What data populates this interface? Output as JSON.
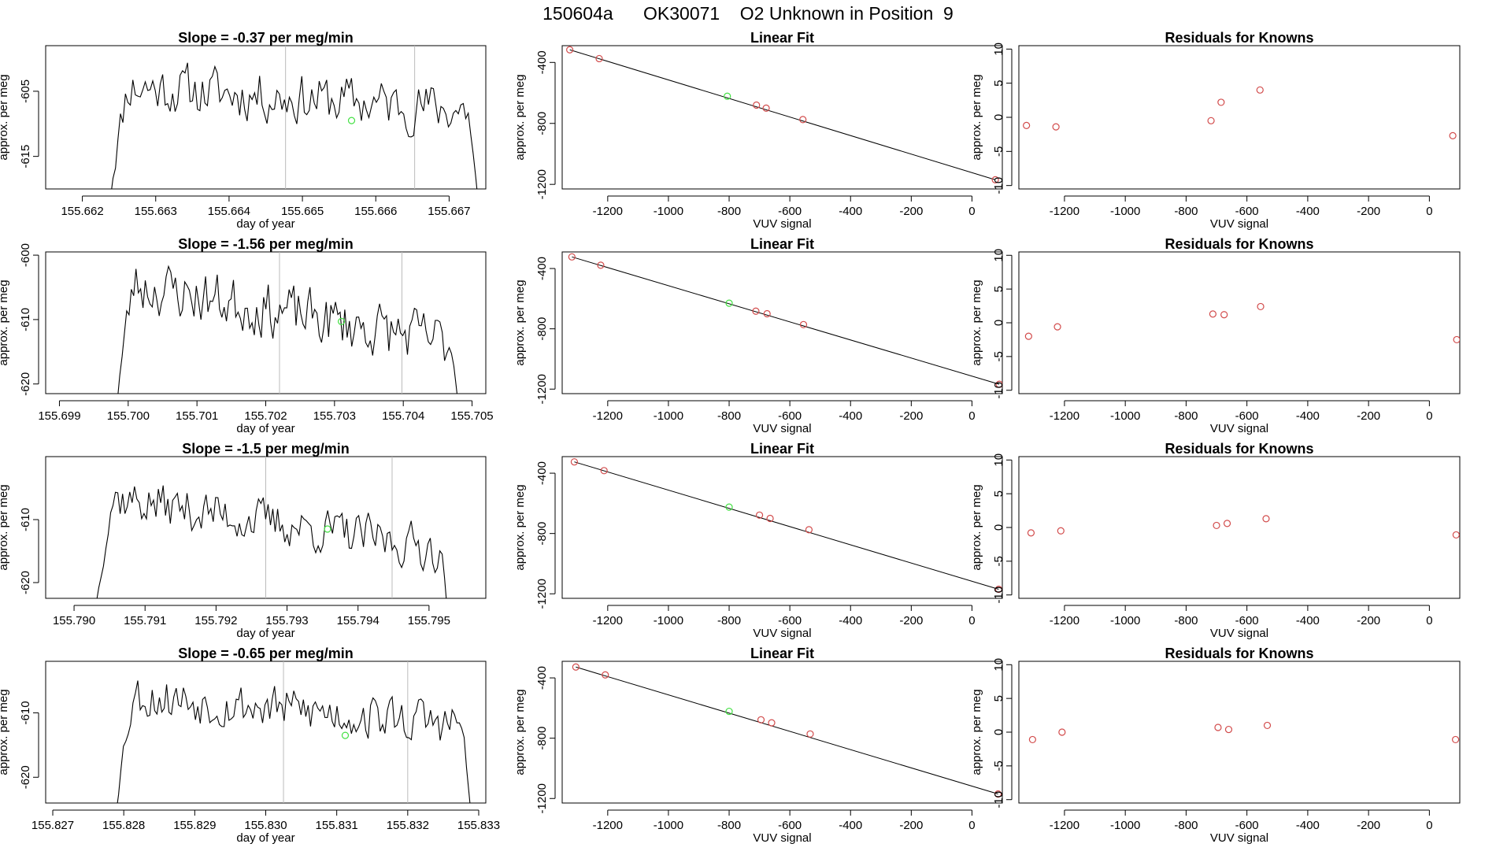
{
  "page": {
    "title_date": "150604a",
    "title_tank": "OK30071",
    "title_desc": "O2 Unknown in Position  9",
    "colors": {
      "known": "#d24b4b",
      "unknown": "#44e044",
      "line": "#000000",
      "vline": "#bbbbbb"
    }
  },
  "chart_data": [
    {
      "type": "line",
      "title": "Slope =  -0.37  per meg/min",
      "xlabel": "day of year",
      "ylabel": "approx. per meg",
      "xlim": [
        155.6615,
        155.6675
      ],
      "ylim": [
        -620,
        -598
      ],
      "xticks": [
        "155.662",
        "155.663",
        "155.664",
        "155.665",
        "155.666",
        "155.667"
      ],
      "xtick_values": [
        155.662,
        155.663,
        155.664,
        155.665,
        155.666,
        155.667
      ],
      "yticks": [
        "-605",
        "-615"
      ],
      "ytick_values": [
        -605,
        -615
      ],
      "x_start": 155.66235,
      "x_end": 155.66743,
      "vlines": [
        155.66477,
        155.66653
      ],
      "unknown_point": [
        155.66567,
        -609.5
      ],
      "seed": 11,
      "base": -604,
      "drift": -4,
      "noise": 2.2
    },
    {
      "type": "scatter",
      "title": "Linear Fit",
      "xlabel": "VUV signal",
      "ylabel": "approx. per meg",
      "xlim": [
        -1350,
        100
      ],
      "ylim": [
        -1230,
        -290
      ],
      "xticks": [
        "-1200",
        "-1000",
        "-800",
        "-600",
        "-400",
        "-200",
        "0"
      ],
      "xtick_values": [
        -1200,
        -1000,
        -800,
        -600,
        -400,
        -200,
        0
      ],
      "yticks": [
        "-400",
        "-800",
        "-1200"
      ],
      "ytick_values": [
        -400,
        -800,
        -1200
      ],
      "known_points": [
        [
          -1325,
          -317
        ],
        [
          -1228,
          -375
        ],
        [
          -710,
          -680
        ],
        [
          -678,
          -700
        ],
        [
          -557,
          -775
        ],
        [
          77,
          -1170
        ]
      ],
      "unknown_points": [
        [
          -806,
          -622
        ]
      ],
      "fit_line": [
        [
          -1325,
          -317
        ],
        [
          77,
          -1170
        ]
      ]
    },
    {
      "type": "scatter",
      "title": "Residuals for Knowns",
      "xlabel": "VUV signal",
      "ylabel": "approx. per meg",
      "xlim": [
        -1350,
        100
      ],
      "ylim": [
        -10.5,
        10.5
      ],
      "xticks": [
        "-1200",
        "-1000",
        "-800",
        "-600",
        "-400",
        "-200",
        "0"
      ],
      "xtick_values": [
        -1200,
        -1000,
        -800,
        -600,
        -400,
        -200,
        0
      ],
      "yticks": [
        "-10",
        "-5",
        "0",
        "5",
        "10"
      ],
      "ytick_values": [
        -10,
        -5,
        0,
        5,
        10
      ],
      "known_points": [
        [
          -1325,
          -1.2
        ],
        [
          -1228,
          -1.4
        ],
        [
          -718,
          -0.5
        ],
        [
          -685,
          2.2
        ],
        [
          -557,
          4.0
        ],
        [
          77,
          -2.7
        ]
      ]
    },
    {
      "type": "line",
      "title": "Slope =  -1.56  per meg/min",
      "xlabel": "day of year",
      "ylabel": "approx. per meg",
      "xlim": [
        155.6988,
        155.7052
      ],
      "ylim": [
        -621.5,
        -599.5
      ],
      "xticks": [
        "155.699",
        "155.700",
        "155.701",
        "155.702",
        "155.703",
        "155.704",
        "155.705"
      ],
      "xtick_values": [
        155.699,
        155.7,
        155.701,
        155.702,
        155.703,
        155.704,
        155.705
      ],
      "yticks": [
        "-600",
        "-610",
        "-620"
      ],
      "ytick_values": [
        -600,
        -610,
        -620
      ],
      "x_start": 155.69981,
      "x_end": 155.70487,
      "vlines": [
        155.7022,
        155.70398
      ],
      "unknown_point": [
        155.7031,
        -610.3
      ],
      "seed": 23,
      "base": -604,
      "drift": -10,
      "noise": 2.4
    },
    {
      "type": "scatter",
      "title": "Linear Fit",
      "xlabel": "VUV signal",
      "ylabel": "approx. per meg",
      "xlim": [
        -1350,
        100
      ],
      "ylim": [
        -1230,
        -290
      ],
      "xticks": [
        "-1200",
        "-1000",
        "-800",
        "-600",
        "-400",
        "-200",
        "0"
      ],
      "xtick_values": [
        -1200,
        -1000,
        -800,
        -600,
        -400,
        -200,
        0
      ],
      "yticks": [
        "-400",
        "-800",
        "-1200"
      ],
      "ytick_values": [
        -400,
        -800,
        -1200
      ],
      "known_points": [
        [
          -1318,
          -323
        ],
        [
          -1223,
          -378
        ],
        [
          -712,
          -683
        ],
        [
          -675,
          -700
        ],
        [
          -555,
          -772
        ],
        [
          90,
          -1168
        ]
      ],
      "unknown_points": [
        [
          -800,
          -630
        ]
      ],
      "fit_line": [
        [
          -1318,
          -323
        ],
        [
          90,
          -1168
        ]
      ]
    },
    {
      "type": "scatter",
      "title": "Residuals for Knowns",
      "xlabel": "VUV signal",
      "ylabel": "approx. per meg",
      "xlim": [
        -1350,
        100
      ],
      "ylim": [
        -10.5,
        10.5
      ],
      "xticks": [
        "-1200",
        "-1000",
        "-800",
        "-600",
        "-400",
        "-200",
        "0"
      ],
      "xtick_values": [
        -1200,
        -1000,
        -800,
        -600,
        -400,
        -200,
        0
      ],
      "yticks": [
        "-10",
        "-5",
        "0",
        "5",
        "10"
      ],
      "ytick_values": [
        -10,
        -5,
        0,
        5,
        10
      ],
      "known_points": [
        [
          -1318,
          -2.0
        ],
        [
          -1223,
          -0.6
        ],
        [
          -712,
          1.3
        ],
        [
          -675,
          1.2
        ],
        [
          -555,
          2.4
        ],
        [
          90,
          -2.5
        ]
      ]
    },
    {
      "type": "line",
      "title": "Slope =  -1.5  per meg/min",
      "xlabel": "day of year",
      "ylabel": "approx. per meg",
      "xlim": [
        155.7896,
        155.7958
      ],
      "ylim": [
        -622.5,
        -600
      ],
      "xticks": [
        "155.790",
        "155.791",
        "155.792",
        "155.793",
        "155.794",
        "155.795"
      ],
      "xtick_values": [
        155.79,
        155.791,
        155.792,
        155.793,
        155.794,
        155.795
      ],
      "yticks": [
        "-610",
        "-620"
      ],
      "ytick_values": [
        -610,
        -620
      ],
      "x_start": 155.79028,
      "x_end": 155.79532,
      "vlines": [
        155.7927,
        155.79448
      ],
      "unknown_point": [
        155.79357,
        -611.5
      ],
      "seed": 37,
      "base": -606,
      "drift": -9,
      "noise": 2.0
    },
    {
      "type": "scatter",
      "title": "Linear Fit",
      "xlabel": "VUV signal",
      "ylabel": "approx. per meg",
      "xlim": [
        -1350,
        100
      ],
      "ylim": [
        -1230,
        -290
      ],
      "xticks": [
        "-1200",
        "-1000",
        "-800",
        "-600",
        "-400",
        "-200",
        "0"
      ],
      "xtick_values": [
        -1200,
        -1000,
        -800,
        -600,
        -400,
        -200,
        0
      ],
      "yticks": [
        "-400",
        "-800",
        "-1200"
      ],
      "ytick_values": [
        -400,
        -800,
        -1200
      ],
      "known_points": [
        [
          -1310,
          -325
        ],
        [
          -1212,
          -383
        ],
        [
          -700,
          -678
        ],
        [
          -665,
          -700
        ],
        [
          -537,
          -775
        ],
        [
          88,
          -1170
        ]
      ],
      "unknown_points": [
        [
          -800,
          -625
        ]
      ],
      "fit_line": [
        [
          -1310,
          -325
        ],
        [
          88,
          -1170
        ]
      ]
    },
    {
      "type": "scatter",
      "title": "Residuals for Knowns",
      "xlabel": "VUV signal",
      "ylabel": "approx. per meg",
      "xlim": [
        -1350,
        100
      ],
      "ylim": [
        -10.5,
        10.5
      ],
      "xticks": [
        "-1200",
        "-1000",
        "-800",
        "-600",
        "-400",
        "-200",
        "0"
      ],
      "xtick_values": [
        -1200,
        -1000,
        -800,
        -600,
        -400,
        -200,
        0
      ],
      "yticks": [
        "-10",
        "-5",
        "0",
        "5",
        "10"
      ],
      "ytick_values": [
        -10,
        -5,
        0,
        5,
        10
      ],
      "known_points": [
        [
          -1310,
          -0.8
        ],
        [
          -1212,
          -0.5
        ],
        [
          -700,
          0.3
        ],
        [
          -665,
          0.6
        ],
        [
          -537,
          1.3
        ],
        [
          88,
          -1.1
        ]
      ]
    },
    {
      "type": "line",
      "title": "Slope =  -0.65  per meg/min",
      "xlabel": "day of year",
      "ylabel": "approx. per meg",
      "xlim": [
        155.8269,
        155.8331
      ],
      "ylim": [
        -624,
        -602
      ],
      "xticks": [
        "155.827",
        "155.828",
        "155.829",
        "155.830",
        "155.831",
        "155.832",
        "155.833"
      ],
      "xtick_values": [
        155.827,
        155.828,
        155.829,
        155.83,
        155.831,
        155.832,
        155.833
      ],
      "yticks": [
        "-610",
        "-620"
      ],
      "ytick_values": [
        -610,
        -620
      ],
      "x_start": 155.82786,
      "x_end": 155.83293,
      "vlines": [
        155.83025,
        155.832
      ],
      "unknown_point": [
        155.83112,
        -613.5
      ],
      "seed": 53,
      "base": -607,
      "drift": -5,
      "noise": 2.0
    },
    {
      "type": "scatter",
      "title": "Linear Fit",
      "xlabel": "VUV signal",
      "ylabel": "approx. per meg",
      "xlim": [
        -1350,
        100
      ],
      "ylim": [
        -1230,
        -290
      ],
      "xticks": [
        "-1200",
        "-1000",
        "-800",
        "-600",
        "-400",
        "-200",
        "0"
      ],
      "xtick_values": [
        -1200,
        -1000,
        -800,
        -600,
        -400,
        -200,
        0
      ],
      "yticks": [
        "-400",
        "-800",
        "-1200"
      ],
      "ytick_values": [
        -400,
        -800,
        -1200
      ],
      "known_points": [
        [
          -1305,
          -328
        ],
        [
          -1208,
          -380
        ],
        [
          -695,
          -678
        ],
        [
          -660,
          -698
        ],
        [
          -533,
          -772
        ],
        [
          86,
          -1170
        ]
      ],
      "unknown_points": [
        [
          -800,
          -622
        ]
      ],
      "fit_line": [
        [
          -1305,
          -328
        ],
        [
          86,
          -1170
        ]
      ]
    },
    {
      "type": "scatter",
      "title": "Residuals for Knowns",
      "xlabel": "VUV signal",
      "ylabel": "approx. per meg",
      "xlim": [
        -1350,
        100
      ],
      "ylim": [
        -10.5,
        10.5
      ],
      "xticks": [
        "-1200",
        "-1000",
        "-800",
        "-600",
        "-400",
        "-200",
        "0"
      ],
      "xtick_values": [
        -1200,
        -1000,
        -800,
        -600,
        -400,
        -200,
        0
      ],
      "yticks": [
        "-10",
        "-5",
        "0",
        "5",
        "10"
      ],
      "ytick_values": [
        -10,
        -5,
        0,
        5,
        10
      ],
      "known_points": [
        [
          -1305,
          -1.1
        ],
        [
          -1208,
          0.0
        ],
        [
          -695,
          0.7
        ],
        [
          -660,
          0.4
        ],
        [
          -533,
          1.0
        ],
        [
          86,
          -1.1
        ]
      ]
    }
  ]
}
